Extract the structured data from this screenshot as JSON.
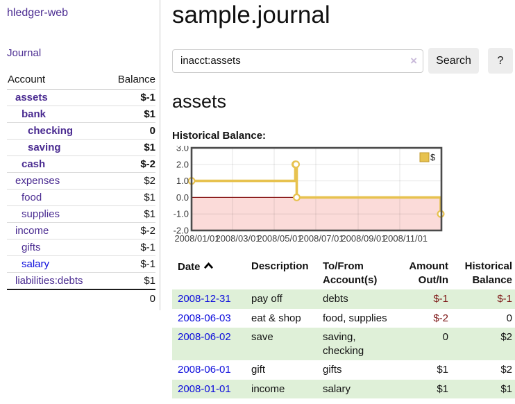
{
  "app": {
    "brand": "hledger-web"
  },
  "sidebar": {
    "journal_link": "Journal",
    "accounts_table": {
      "account_header": "Account",
      "balance_header": "Balance",
      "rows": [
        {
          "name": "assets",
          "balance": "$-1",
          "depth": 1,
          "bold": true,
          "balance_tone": "negative-strong"
        },
        {
          "name": "bank",
          "balance": "$1",
          "depth": 2,
          "bold": true,
          "balance_tone": "positive"
        },
        {
          "name": "checking",
          "balance": "0",
          "depth": 3,
          "bold": true,
          "balance_tone": "zero"
        },
        {
          "name": "saving",
          "balance": "$1",
          "depth": 3,
          "bold": true,
          "balance_tone": "positive"
        },
        {
          "name": "cash",
          "balance": "$-2",
          "depth": 2,
          "bold": true,
          "balance_tone": "negative-strong"
        },
        {
          "name": "expenses",
          "balance": "$2",
          "depth": 1,
          "bold": false,
          "balance_tone": "positive"
        },
        {
          "name": "food",
          "balance": "$1",
          "depth": 2,
          "bold": false,
          "balance_tone": "positive"
        },
        {
          "name": "supplies",
          "balance": "$1",
          "depth": 2,
          "bold": false,
          "balance_tone": "positive"
        },
        {
          "name": "income",
          "balance": "$-2",
          "depth": 1,
          "bold": false,
          "balance_tone": "negative-soft"
        },
        {
          "name": "gifts",
          "balance": "$-1",
          "depth": 2,
          "bold": false,
          "balance_tone": "negative-soft"
        },
        {
          "name": "salary",
          "balance": "$-1",
          "depth": 2,
          "bold": false,
          "balance_tone": "negative-soft",
          "link_tone": "blue"
        },
        {
          "name": "liabilities:debts",
          "balance": "$1",
          "depth": 1,
          "bold": false,
          "balance_tone": "positive"
        }
      ],
      "total": "0"
    }
  },
  "main": {
    "title": "sample.journal",
    "search": {
      "value": "inacct:assets",
      "clear_icon": "×",
      "search_button": "Search",
      "help_button": "?"
    },
    "account_heading": "assets",
    "chart_heading": "Historical Balance:",
    "register_table": {
      "headers": {
        "date": "Date",
        "description": "Description",
        "accounts_line1": "To/From",
        "accounts_line2": "Account(s)",
        "amount_line1": "Amount",
        "amount_line2": "Out/In",
        "balance_line1": "Historical",
        "balance_line2": "Balance"
      },
      "rows": [
        {
          "date": "2008-12-31",
          "description": "pay off",
          "accounts": "debts",
          "amount": "$-1",
          "balance": "$-1"
        },
        {
          "date": "2008-06-03",
          "description": "eat & shop",
          "accounts": "food, supplies",
          "amount": "$-2",
          "balance": "0"
        },
        {
          "date": "2008-06-02",
          "description": "save",
          "accounts": "saving, checking",
          "amount": "0",
          "balance": "$2"
        },
        {
          "date": "2008-06-01",
          "description": "gift",
          "accounts": "gifts",
          "amount": "$1",
          "balance": "$2"
        },
        {
          "date": "2008-01-01",
          "description": "income",
          "accounts": "salary",
          "amount": "$1",
          "balance": "$1"
        }
      ]
    }
  },
  "chart_data": {
    "type": "line",
    "title": "Historical Balance",
    "step": true,
    "series": [
      {
        "name": "$",
        "color": "#e7c24f",
        "points": [
          [
            "2008-01-01",
            1
          ],
          [
            "2008-06-01",
            2
          ],
          [
            "2008-06-02",
            2
          ],
          [
            "2008-06-03",
            0
          ],
          [
            "2008-12-31",
            -1
          ]
        ]
      }
    ],
    "x_start": "2008-01-01",
    "x_end": "2009-01-01",
    "x_tick_dates": [
      "2008-01-01",
      "2008-03-01",
      "2008-05-01",
      "2008-07-01",
      "2008-09-01",
      "2008-11-01"
    ],
    "x_tick_labels": [
      "2008/01/01",
      "2008/03/01",
      "2008/05/01",
      "2008/07/01",
      "2008/09/01",
      "2008/11/01"
    ],
    "y_ticks": [
      3.0,
      2.0,
      1.0,
      0.0,
      -1.0,
      -2.0
    ],
    "y_tick_labels": [
      "3.0",
      "2.0",
      "1.0",
      "0.0",
      "-1.0",
      "-2.0"
    ],
    "ylim": [
      -2,
      3
    ],
    "grid": true,
    "legend": {
      "label": "$",
      "position": "top-right"
    },
    "negative_region": true
  },
  "colors": {
    "purple_link": "#4a2b91",
    "blue_link": "#0b0bdc",
    "negative_strong": "#7c1414",
    "negative_soft": "#b26a66",
    "row_green": "#dff0d8",
    "chart_line": "#e7c24f",
    "chart_marker_fill": "#ffffff",
    "chart_negative_region": "#fbdbd9",
    "chart_zero_line": "#8b1d1d",
    "chart_border": "#4a4a4a",
    "chart_grid": "rgba(0,0,0,0.10)"
  }
}
